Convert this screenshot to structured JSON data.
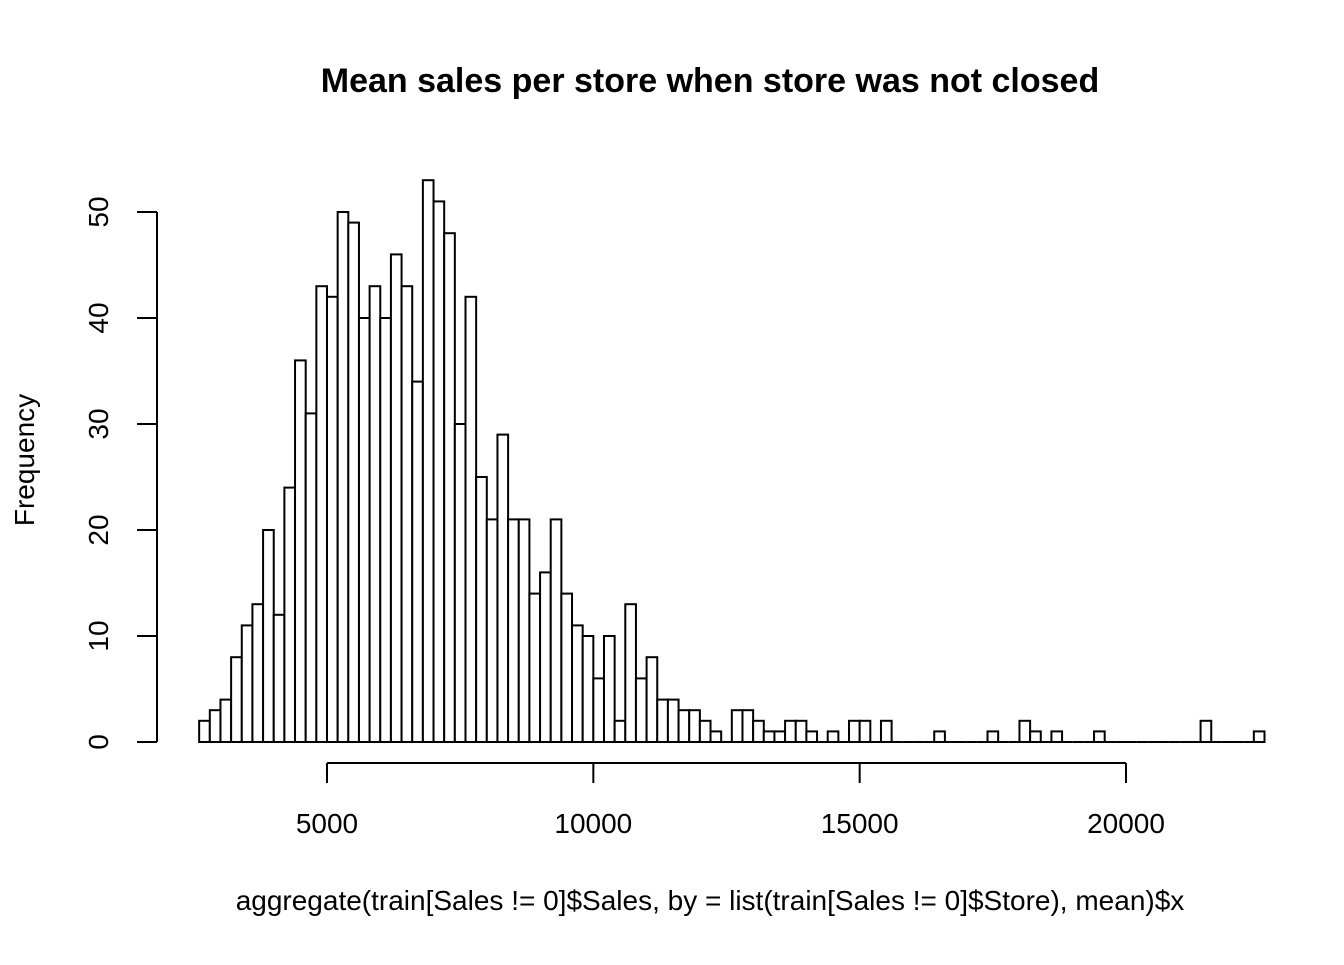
{
  "chart_data": {
    "type": "bar",
    "title": "Mean sales per store when store was not closed",
    "xlabel": "aggregate(train[Sales != 0]$Sales, by = list(train[Sales != 0]$Store), mean)$x",
    "ylabel": "Frequency",
    "x_ticks": [
      "5000",
      "10000",
      "15000",
      "20000"
    ],
    "y_ticks": [
      "0",
      "10",
      "20",
      "30",
      "40",
      "50"
    ],
    "bin_start": 2600,
    "bin_width": 200,
    "values": [
      2,
      3,
      4,
      8,
      11,
      13,
      20,
      12,
      24,
      36,
      31,
      43,
      42,
      50,
      49,
      40,
      43,
      40,
      46,
      43,
      34,
      53,
      51,
      48,
      30,
      42,
      25,
      21,
      29,
      21,
      21,
      14,
      16,
      21,
      14,
      11,
      10,
      6,
      10,
      2,
      13,
      6,
      8,
      4,
      4,
      3,
      3,
      2,
      1,
      0,
      3,
      3,
      2,
      1,
      1,
      2,
      2,
      1,
      0,
      1,
      0,
      2,
      2,
      0,
      2,
      0,
      0,
      0,
      0,
      1,
      0,
      0,
      0,
      0,
      1,
      0,
      0,
      2,
      1,
      0,
      1,
      0,
      0,
      0,
      1,
      0,
      0,
      0,
      0,
      0,
      0,
      0,
      0,
      0,
      2,
      0,
      0,
      0,
      0,
      1
    ],
    "xlim": [
      2600,
      22600
    ],
    "ylim": [
      0,
      53
    ],
    "grid": false,
    "fill_color": "#ffffff",
    "stroke_color": "#000000"
  }
}
